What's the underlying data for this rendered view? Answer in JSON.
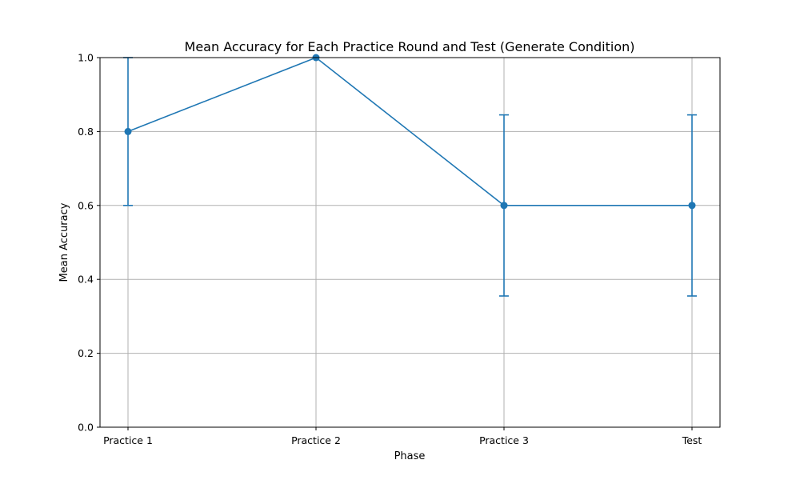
{
  "chart_data": {
    "type": "line",
    "title": "Mean Accuracy for Each Practice Round and Test (Generate Condition)",
    "xlabel": "Phase",
    "ylabel": "Mean Accuracy",
    "categories": [
      "Practice 1",
      "Practice 2",
      "Practice 3",
      "Test"
    ],
    "series": [
      {
        "values": [
          0.8,
          1.0,
          0.6,
          0.6
        ],
        "error": [
          0.2,
          0.0,
          0.245,
          0.245
        ],
        "color": "#1f77b4"
      }
    ],
    "ylim": [
      0,
      1.0
    ],
    "yticks": [
      0.0,
      0.2,
      0.4,
      0.6,
      0.8,
      1.0
    ],
    "ytick_labels": [
      "0.0",
      "0.2",
      "0.4",
      "0.6",
      "0.8",
      "1.0"
    ],
    "grid": true
  }
}
